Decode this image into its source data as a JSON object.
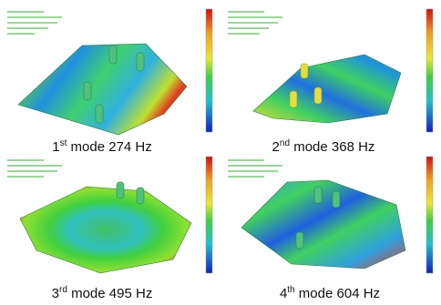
{
  "panels": [
    {
      "ordinal": "1",
      "suffix": "st",
      "label": "mode",
      "frequency": "274",
      "unit": "Hz"
    },
    {
      "ordinal": "2",
      "suffix": "nd",
      "label": "mode",
      "frequency": "368",
      "unit": "Hz"
    },
    {
      "ordinal": "3",
      "suffix": "rd",
      "label": "mode",
      "frequency": "495",
      "unit": "Hz"
    },
    {
      "ordinal": "4",
      "suffix": "th",
      "label": "mode",
      "frequency": "604",
      "unit": "Hz"
    }
  ]
}
